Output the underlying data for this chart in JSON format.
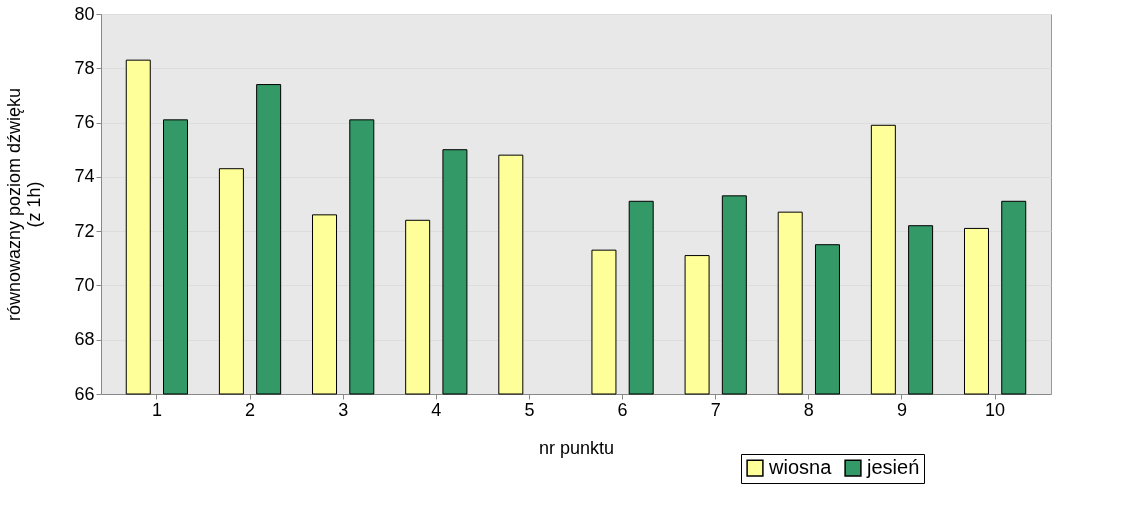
{
  "chart_data": {
    "type": "bar",
    "xlabel": "nr punktu",
    "ylabel": "równowazny poziom dźwięku\n(z 1h)",
    "categories": [
      "1",
      "2",
      "3",
      "4",
      "5",
      "6",
      "7",
      "8",
      "9",
      "10"
    ],
    "series": [
      {
        "name": "wiosna",
        "color": "#ffff99",
        "values": [
          78.3,
          74.3,
          72.6,
          72.4,
          74.8,
          71.3,
          71.1,
          72.7,
          75.9,
          72.1
        ]
      },
      {
        "name": "jesień",
        "color": "#339966",
        "values": [
          76.1,
          77.4,
          76.1,
          75.0,
          null,
          73.1,
          73.3,
          71.5,
          72.2,
          73.1
        ]
      }
    ],
    "ylim": [
      66,
      80
    ],
    "yticks": [
      66,
      68,
      70,
      72,
      74,
      76,
      78,
      80
    ],
    "grid": "y",
    "legend": "bottom right"
  }
}
